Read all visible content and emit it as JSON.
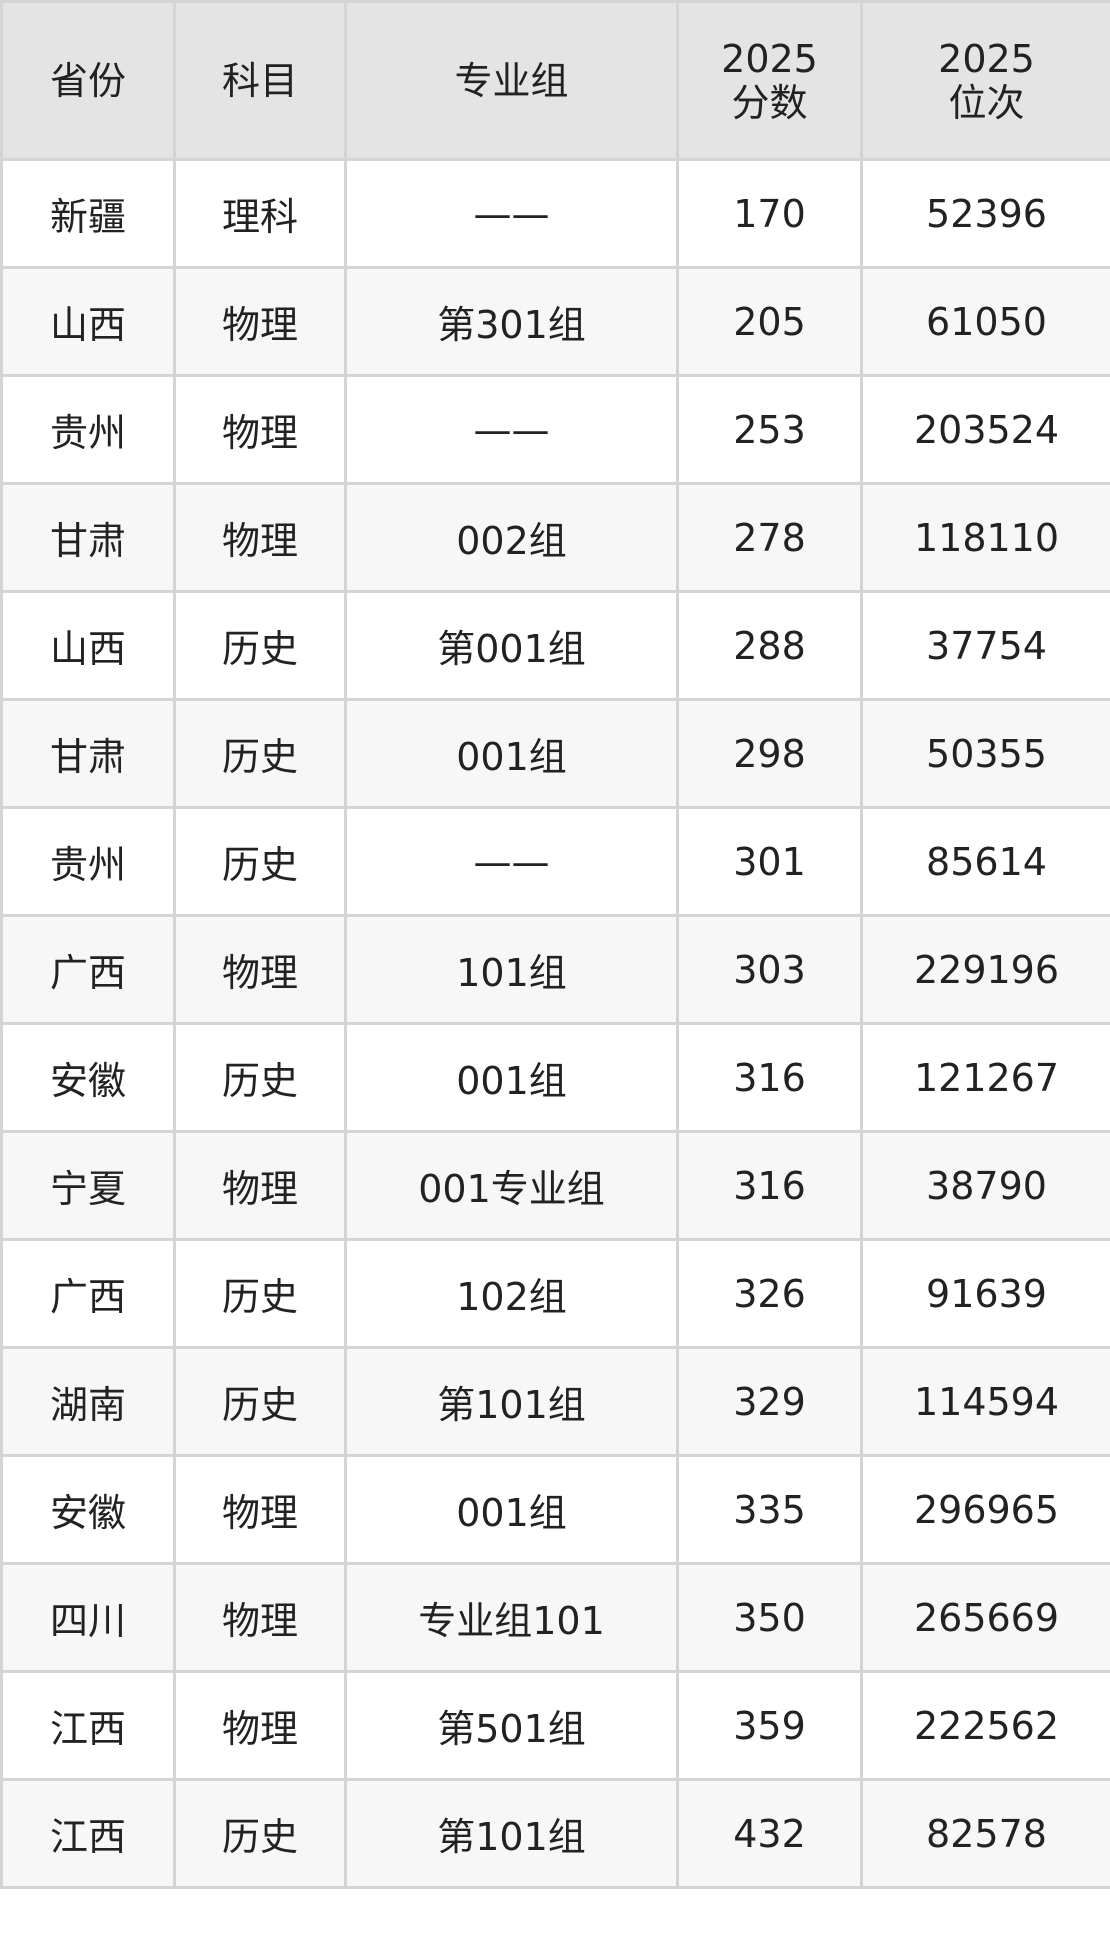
{
  "table": {
    "headers": [
      "省份",
      "科目",
      "专业组",
      "2025\n分数",
      "2025\n位次"
    ],
    "header_lines": [
      [
        "省份"
      ],
      [
        "科目"
      ],
      [
        "专业组"
      ],
      [
        "2025",
        "分数"
      ],
      [
        "2025",
        "位次"
      ]
    ],
    "rows": [
      [
        "新疆",
        "理科",
        "——",
        "170",
        "52396"
      ],
      [
        "山西",
        "物理",
        "第301组",
        "205",
        "61050"
      ],
      [
        "贵州",
        "物理",
        "——",
        "253",
        "203524"
      ],
      [
        "甘肃",
        "物理",
        "002组",
        "278",
        "118110"
      ],
      [
        "山西",
        "历史",
        "第001组",
        "288",
        "37754"
      ],
      [
        "甘肃",
        "历史",
        "001组",
        "298",
        "50355"
      ],
      [
        "贵州",
        "历史",
        "——",
        "301",
        "85614"
      ],
      [
        "广西",
        "物理",
        "101组",
        "303",
        "229196"
      ],
      [
        "安徽",
        "历史",
        "001组",
        "316",
        "121267"
      ],
      [
        "宁夏",
        "物理",
        "001专业组",
        "316",
        "38790"
      ],
      [
        "广西",
        "历史",
        "102组",
        "326",
        "91639"
      ],
      [
        "湖南",
        "历史",
        "第101组",
        "329",
        "114594"
      ],
      [
        "安徽",
        "物理",
        "001组",
        "335",
        "296965"
      ],
      [
        "四川",
        "物理",
        "专业组101",
        "350",
        "265669"
      ],
      [
        "江西",
        "物理",
        "第501组",
        "359",
        "222562"
      ],
      [
        "江西",
        "历史",
        "第101组",
        "432",
        "82578"
      ]
    ]
  },
  "colors": {
    "header_bg": "#e4e4e4",
    "border": "#d4d4d4",
    "alt_row_bg": "#f7f7f7",
    "text": "#222222"
  }
}
